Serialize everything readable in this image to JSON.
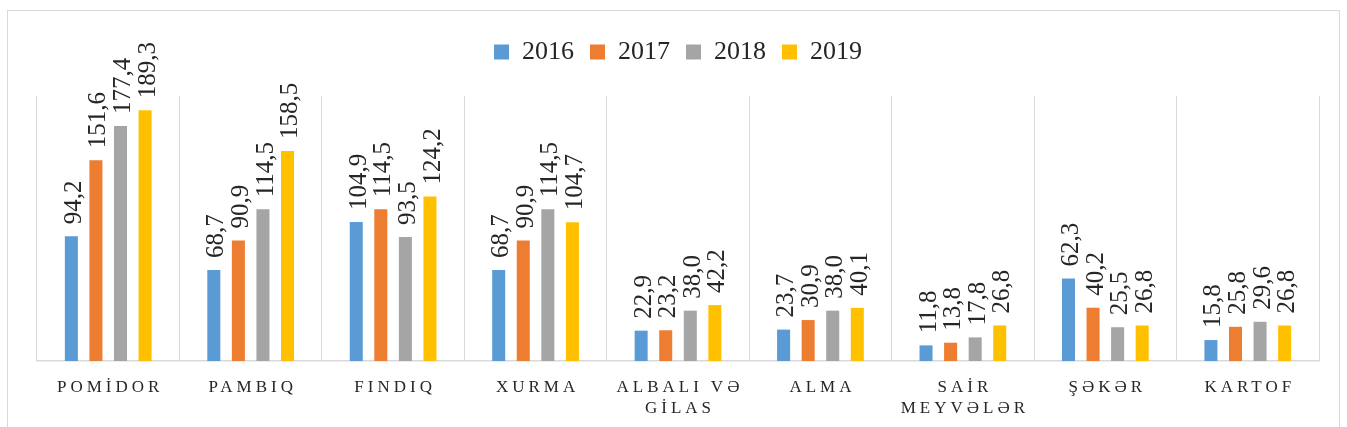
{
  "chart_data": {
    "type": "bar",
    "categories": [
      "POMİDOR",
      "PAMBIQ",
      "FINDIQ",
      "XURMA",
      "ALBALI VƏ GİLAS",
      "ALMA",
      "SAİR MEYVƏLƏR",
      "ŞƏKƏR",
      "KARTOF"
    ],
    "series": [
      {
        "name": "2016",
        "color": "#5b9bd5",
        "values": [
          94.2,
          68.7,
          104.9,
          68.7,
          22.9,
          23.7,
          11.8,
          62.3,
          15.8
        ],
        "value_labels": [
          "94,2",
          "68,7",
          "104,9",
          "68,7",
          "22,9",
          "23,7",
          "11,8",
          "62,3",
          "15,8"
        ]
      },
      {
        "name": "2017",
        "color": "#ed7d31",
        "values": [
          151.6,
          90.9,
          114.5,
          90.9,
          23.2,
          30.9,
          13.8,
          40.2,
          25.8
        ],
        "value_labels": [
          "151,6",
          "90,9",
          "114,5",
          "90,9",
          "23,2",
          "30,9",
          "13,8",
          "40,2",
          "25,8"
        ]
      },
      {
        "name": "2018",
        "color": "#a5a5a5",
        "values": [
          177.4,
          114.5,
          93.5,
          114.5,
          38.0,
          38.0,
          17.8,
          25.5,
          29.6
        ],
        "value_labels": [
          "177,4",
          "114,5",
          "93,5",
          "114,5",
          "38,0",
          "38,0",
          "17,8",
          "25,5",
          "29,6"
        ]
      },
      {
        "name": "2019",
        "color": "#ffc000",
        "values": [
          189.3,
          158.5,
          124.2,
          104.7,
          42.2,
          40.1,
          26.8,
          26.8,
          26.8
        ],
        "value_labels": [
          "189,3",
          "158,5",
          "124,2",
          "104,7",
          "42,2",
          "40,1",
          "26,8",
          "26,8",
          "26,8"
        ]
      }
    ],
    "grid": "x",
    "legend": "top",
    "tick_labels": "x"
  }
}
